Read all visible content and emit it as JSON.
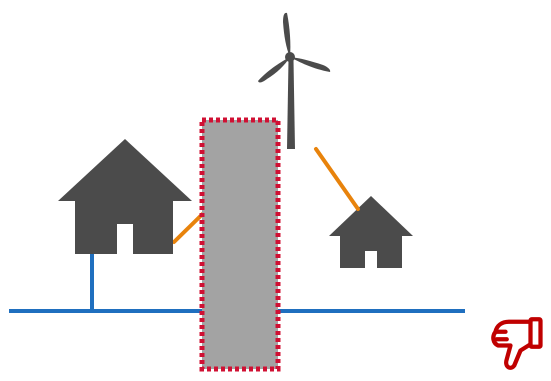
{
  "colors": {
    "background": "#ffffff",
    "house": "#4b4b4b",
    "turbine": "#4b4b4b",
    "connection_line": "#e8830c",
    "grid_line": "#1f6fbf",
    "barrier_fill": "#a3a3a3",
    "barrier_border": "#d01033",
    "feedback_icon": "#c00000"
  },
  "elements": {
    "left_house": {
      "icon": "house-icon",
      "connected_to_grid": true
    },
    "right_house": {
      "icon": "house-icon",
      "connected_to_grid": false
    },
    "wind_turbine": {
      "icon": "wind-turbine-icon"
    },
    "barrier": {
      "style": "dotted-border"
    },
    "grid": {
      "icon": "power-line"
    },
    "feedback": {
      "icon": "thumbs-down-icon"
    }
  }
}
